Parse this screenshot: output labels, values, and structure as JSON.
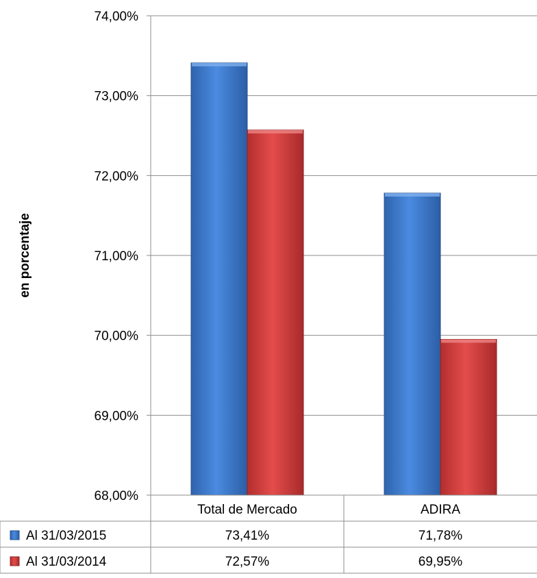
{
  "chart_data": {
    "type": "bar",
    "title": "",
    "xlabel": "",
    "ylabel": "en porcentaje",
    "ylim": [
      68,
      74
    ],
    "y_ticks": [
      68,
      69,
      70,
      71,
      72,
      73,
      74
    ],
    "y_tick_labels": [
      "68,00%",
      "69,00%",
      "70,00%",
      "71,00%",
      "72,00%",
      "73,00%",
      "74,00%"
    ],
    "categories": [
      "Total de Mercado",
      "ADIRA"
    ],
    "series": [
      {
        "name": "Al 31/03/2015",
        "values": [
          73.41,
          71.78
        ],
        "labels": [
          "73,41%",
          "71,78%"
        ],
        "color": "#3f7fd6"
      },
      {
        "name": "Al 31/03/2014",
        "values": [
          72.57,
          69.95
        ],
        "labels": [
          "72,57%",
          "69,95%"
        ],
        "color": "#d94040"
      }
    ],
    "grid": true,
    "legend": "data-table"
  }
}
